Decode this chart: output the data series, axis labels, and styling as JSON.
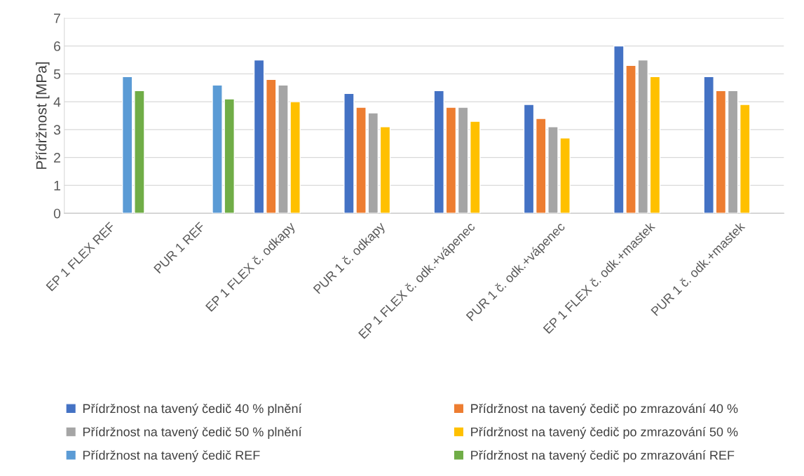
{
  "chart_data": {
    "type": "bar",
    "ylabel": "Přídržnost [MPa]",
    "categories": [
      "EP 1 FLEX REF",
      "PUR 1 REF",
      "EP 1 FLEX č. odkapy",
      "PUR 1 č. odkapy",
      "EP 1 FLEX č. odk.+vápenec",
      "PUR 1 č. odk.+vápenec",
      "EP 1 FLEX č. odk.+mastek",
      "PUR 1 č. odk.+mastek"
    ],
    "series": [
      {
        "name": "Přídržnost na tavený čedič 40 % plnění",
        "color": "#4472c4",
        "values": [
          null,
          null,
          5.5,
          4.3,
          4.4,
          3.9,
          6.0,
          4.9
        ]
      },
      {
        "name": "Přídržnost na tavený čedič po zmrazování 40 %",
        "color": "#ed7d31",
        "values": [
          null,
          null,
          4.8,
          3.8,
          3.8,
          3.4,
          5.3,
          4.4
        ]
      },
      {
        "name": "Přídržnost na tavený čedič 50 % plnění",
        "color": "#a5a5a5",
        "values": [
          null,
          null,
          4.6,
          3.6,
          3.8,
          3.1,
          5.5,
          4.4
        ]
      },
      {
        "name": "Přídržnost na tavený čedič po zmrazování 50 %",
        "color": "#ffc000",
        "values": [
          null,
          null,
          4.0,
          3.1,
          3.3,
          2.7,
          4.9,
          3.9
        ]
      },
      {
        "name": "Přídržnost na tavený čedič REF",
        "color": "#5b9bd5",
        "values": [
          4.9,
          4.6,
          null,
          null,
          null,
          null,
          null,
          null
        ]
      },
      {
        "name": "Přídržnost na tavený čedič po zmrazování REF",
        "color": "#70ad47",
        "values": [
          4.4,
          4.1,
          null,
          null,
          null,
          null,
          null,
          null
        ]
      }
    ],
    "ylim": [
      0,
      7
    ],
    "yticks": [
      0,
      1,
      2,
      3,
      4,
      5,
      6,
      7
    ],
    "grid": "y",
    "legend": "bottom"
  }
}
